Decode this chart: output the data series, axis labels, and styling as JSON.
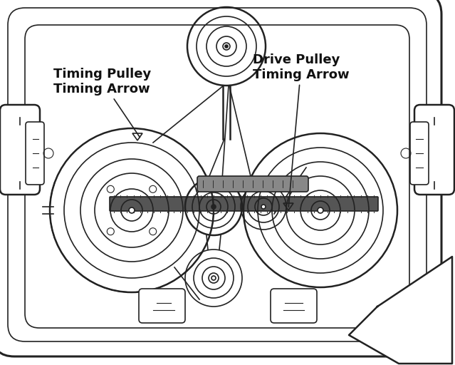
{
  "bg_color": "#ffffff",
  "line_color": "#222222",
  "text_color": "#111111",
  "label1": "Timing Pulley\nTiming Arrow",
  "label2": "Drive Pulley\nTiming Arrow",
  "figsize": [
    6.39,
    5.12
  ],
  "dpi": 100
}
